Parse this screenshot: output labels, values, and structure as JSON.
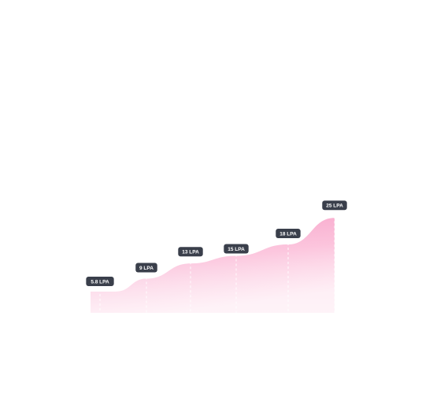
{
  "chart_data": {
    "type": "area",
    "title": "",
    "xlabel": "",
    "ylabel": "",
    "x": [
      0,
      1,
      2,
      3,
      4,
      5
    ],
    "ylim": [
      0,
      26.5
    ],
    "grid": false,
    "series": [
      {
        "values": [
          5.8,
          9,
          13,
          15,
          18,
          25
        ],
        "labels": [
          "5.8 LPA",
          "9 LPA",
          "13 LPA",
          "15 LPA",
          "18 LPA",
          "25 LPA"
        ]
      }
    ],
    "colors": {
      "area_top": "#f9a8cc",
      "area_bottom": "#fde4ef",
      "label_bg": "#3a3f4b",
      "label_text": "#ffffff",
      "marker_line": "#ffffff"
    }
  }
}
